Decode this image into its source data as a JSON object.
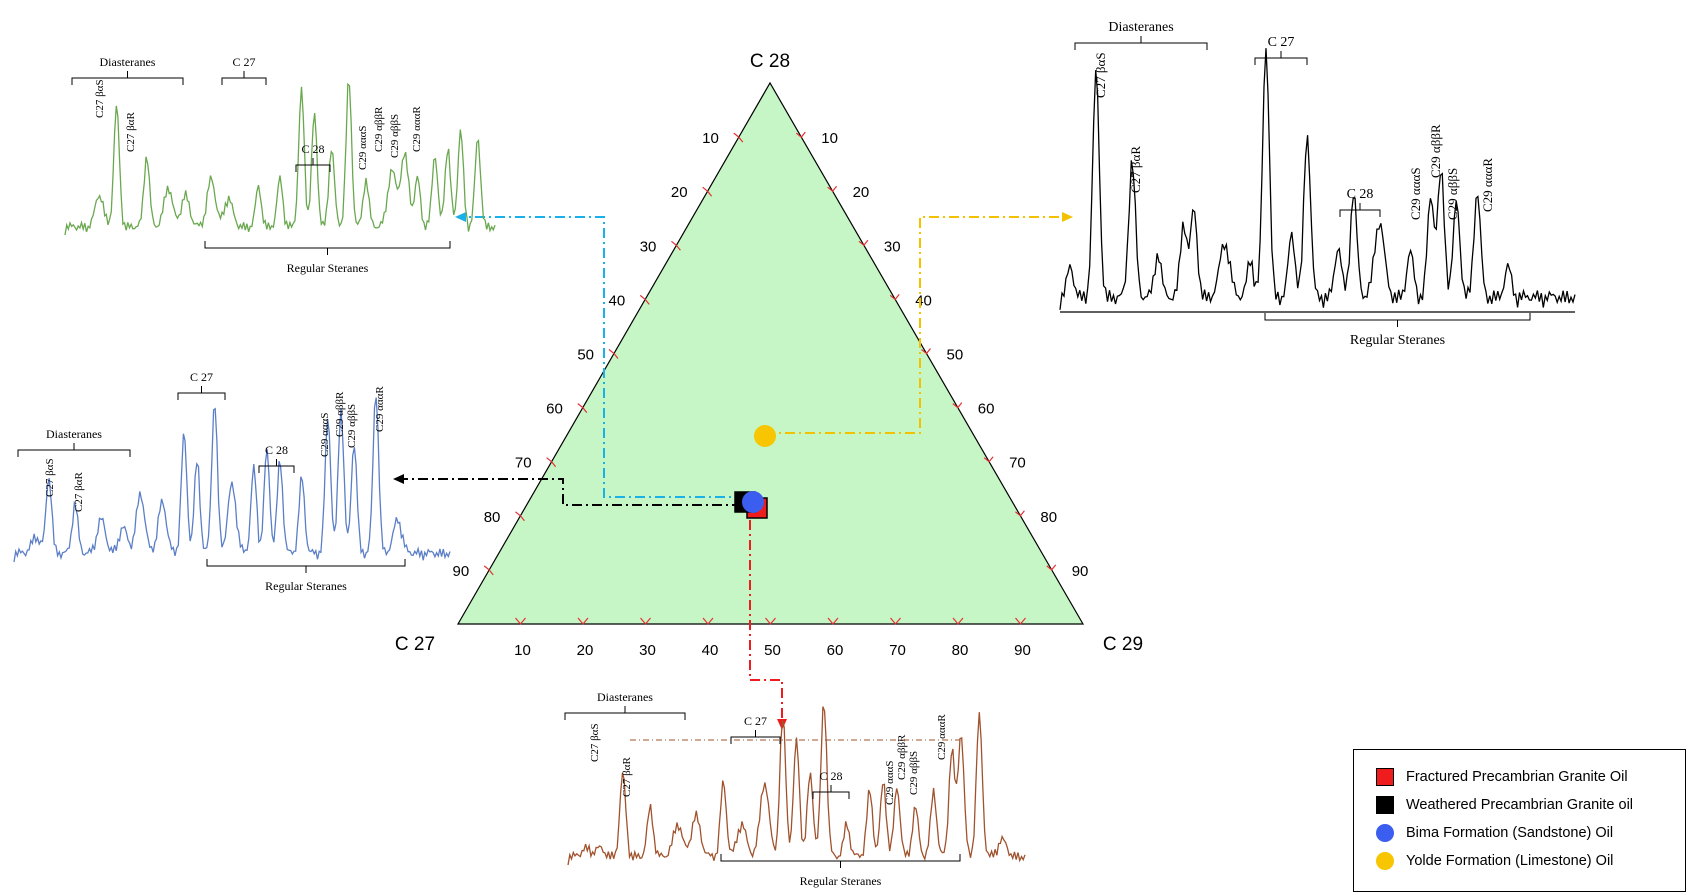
{
  "chart_data": {
    "type": "ternary",
    "apex_labels": {
      "top": "C 28",
      "left": "C 27",
      "right": "C 29"
    },
    "ticks": [
      "10",
      "20",
      "30",
      "40",
      "50",
      "60",
      "70",
      "80",
      "90"
    ],
    "points": [
      {
        "name": "Fractured Precambrian Granite Oil",
        "C27": 52,
        "C28": 21,
        "C29": 27,
        "color": "#ee1c1c",
        "marker": "square"
      },
      {
        "name": "Weathered Precambrian Granite oil",
        "C27": 53,
        "C28": 22,
        "C29": 25,
        "color": "#000000",
        "marker": "square"
      },
      {
        "name": "Bima Formation (Sandstone) Oil",
        "C27": 52,
        "C28": 22,
        "C29": 26,
        "color": "#3b5ef0",
        "marker": "circle"
      },
      {
        "name": "Yolde Formation (Limestone) Oil",
        "C27": 36,
        "C28": 34,
        "C29": 30,
        "color": "#f7c600",
        "marker": "circle"
      }
    ],
    "triangle_fill": "#c6f5c6"
  },
  "chromatograms": {
    "green": {
      "color": "#6aa84f",
      "group_labels": {
        "diasteranes": "Diasteranes",
        "c27": "C 27",
        "c28": "C 28",
        "regular": "Regular   Steranes"
      },
      "peak_labels": [
        "C27 βαS",
        "C27 βαR",
        "C29 αααS",
        "C29 αββR",
        "C29 αββS",
        "C29 αααR"
      ]
    },
    "blue": {
      "color": "#5b7fc7",
      "group_labels": {
        "diasteranes": "Diasteranes",
        "c27": "C 27",
        "c28": "C 28",
        "regular": "Regular   Steranes"
      },
      "peak_labels": [
        "C27 βαS",
        "C27 βαR",
        "C29 αααS",
        "C29 αββR",
        "C29 αββS",
        "C29 αααR"
      ]
    },
    "black": {
      "color": "#000000",
      "group_labels": {
        "diasteranes": "Diasteranes",
        "c27": "C 27",
        "c28": "C 28",
        "regular": "Regular   Steranes"
      },
      "peak_labels": [
        "C27 βαS",
        "C27 βαR",
        "C29 αααS",
        "C29 αββR",
        "C29 αββS",
        "C29 αααR"
      ]
    },
    "brown": {
      "color": "#a0522d",
      "group_labels": {
        "diasteranes": "Diasteranes",
        "c27": "C 27",
        "c28": "C 28",
        "regular": "Regular   Steranes"
      },
      "peak_labels": [
        "C27 βαS",
        "C27 βαR",
        "C29 αααS",
        "C29 αββR",
        "C29 αββS",
        "C29 αααR"
      ]
    }
  },
  "legend": {
    "items": [
      {
        "label": "Fractured Precambrian Granite Oil",
        "color": "#ee1c1c",
        "marker": "square"
      },
      {
        "label": "Weathered Precambrian Granite oil",
        "color": "#000000",
        "marker": "square"
      },
      {
        "label": "Bima Formation (Sandstone) Oil",
        "color": "#3b5ef0",
        "marker": "circle"
      },
      {
        "label": "Yolde Formation (Limestone) Oil",
        "color": "#f7c600",
        "marker": "circle"
      }
    ]
  }
}
